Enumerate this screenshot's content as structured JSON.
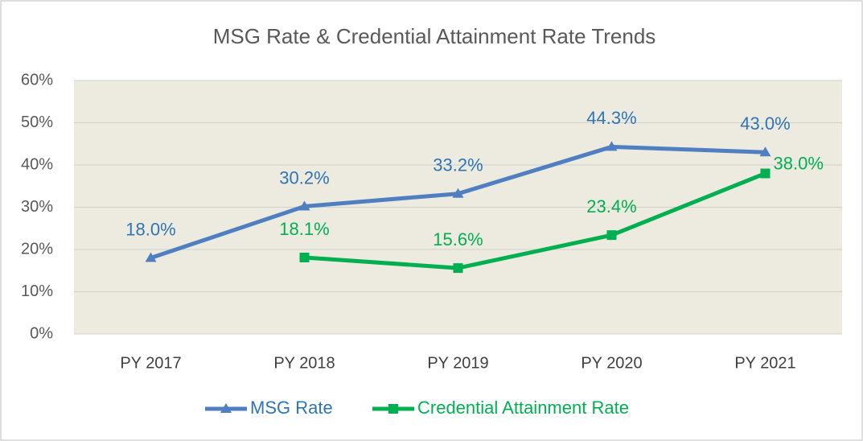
{
  "chart_data": {
    "type": "line",
    "title": "MSG Rate & Credential Attainment Rate Trends",
    "categories": [
      "PY 2017",
      "PY 2018",
      "PY 2019",
      "PY 2020",
      "PY 2021"
    ],
    "series": [
      {
        "name": "MSG Rate",
        "color": "#4f7fc1",
        "label_color": "#2e75b6",
        "marker": "triangle",
        "values": [
          18.0,
          30.2,
          33.2,
          44.3,
          43.0
        ],
        "value_labels": [
          "18.0%",
          "30.2%",
          "33.2%",
          "44.3%",
          "43.0%"
        ]
      },
      {
        "name": "Credential Attainment Rate",
        "color": "#00b050",
        "label_color": "#00b050",
        "marker": "square",
        "values": [
          null,
          18.1,
          15.6,
          23.4,
          38.0
        ],
        "value_labels": [
          null,
          "18.1%",
          "15.6%",
          "23.4%",
          "38.0%"
        ]
      }
    ],
    "ylim": [
      0,
      60
    ],
    "yticks": [
      {
        "value": 0,
        "label": "0%"
      },
      {
        "value": 10,
        "label": "10%"
      },
      {
        "value": 20,
        "label": "20%"
      },
      {
        "value": 30,
        "label": "30%"
      },
      {
        "value": 40,
        "label": "40%"
      },
      {
        "value": 50,
        "label": "50%"
      },
      {
        "value": 60,
        "label": "60%"
      }
    ],
    "grid": true,
    "legend": "bottom"
  }
}
